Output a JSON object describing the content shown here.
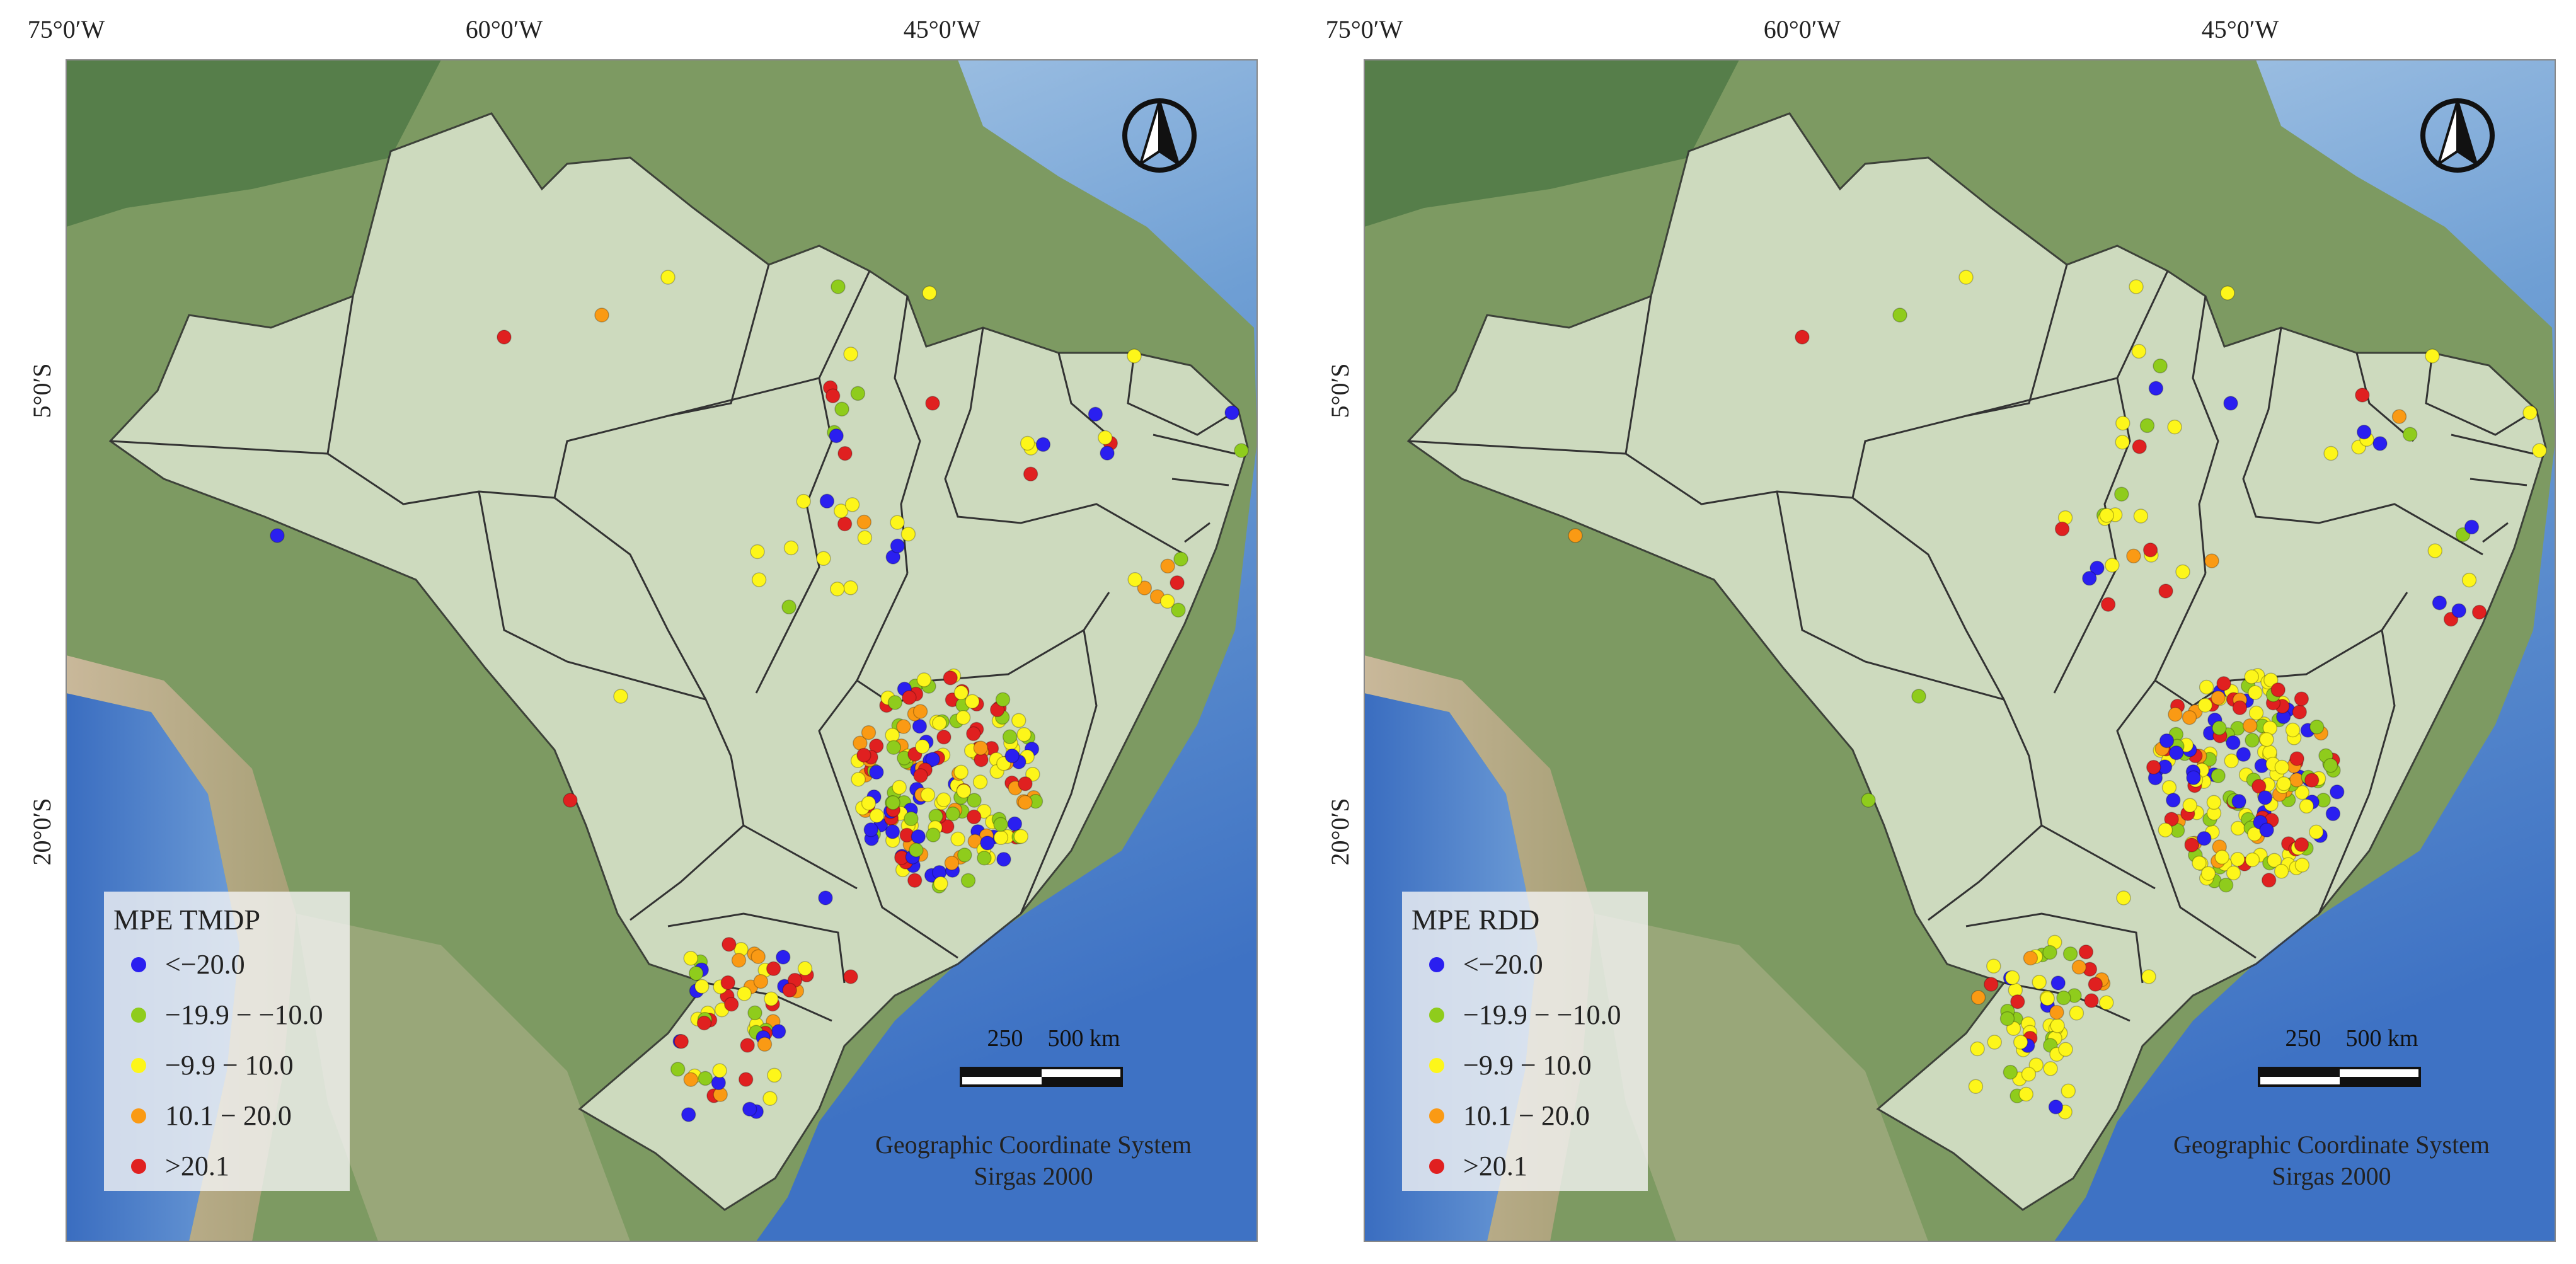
{
  "legend_classes": [
    {
      "label": "<−20.0",
      "color": "#2a1ff0"
    },
    {
      "label": "−19.9 − −10.0",
      "color": "#8fcc1c"
    },
    {
      "label": "−9.9 − 10.0",
      "color": "#fdf61a"
    },
    {
      "label": "10.1 − 20.0",
      "color": "#fa9a14"
    },
    {
      "label": ">20.1",
      "color": "#e02020"
    }
  ],
  "maps": [
    {
      "legend_title": "MPE TMDP",
      "top_ticks": [
        "75°0′W",
        "60°0′W",
        "45°0′W"
      ],
      "left_ticks": [
        "5°0′S",
        "20°0′S"
      ],
      "scale_labels": [
        "250",
        "500 km"
      ],
      "crs_lines": [
        "Geographic Coordinate System",
        "Sirgas 2000"
      ],
      "north_arrow": "north-arrow-icon"
    },
    {
      "legend_title": "MPE RDD",
      "top_ticks": [
        "75°0′W",
        "60°0′W",
        "45°0′W"
      ],
      "left_ticks": [
        "5°0′S",
        "20°0′S"
      ],
      "scale_labels": [
        "250",
        "500 km"
      ],
      "crs_lines": [
        "Geographic Coordinate System",
        "Sirgas 2000"
      ],
      "north_arrow": "north-arrow-icon"
    }
  ]
}
